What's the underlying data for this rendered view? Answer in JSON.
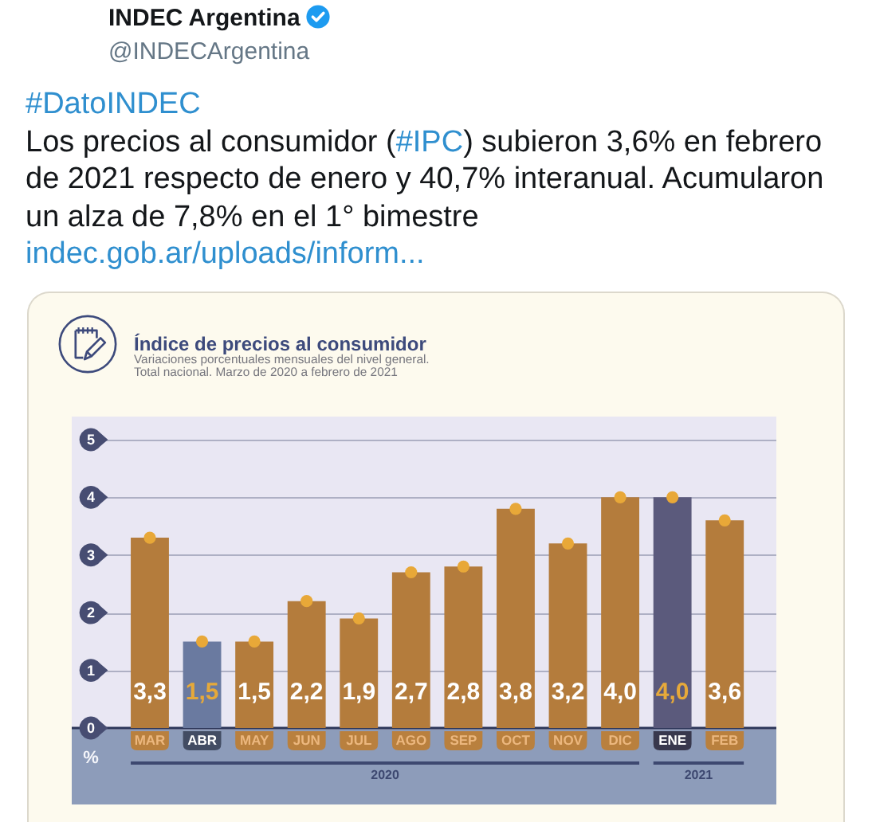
{
  "chart_data": {
    "type": "bar",
    "title": "Índice de precios al consumidor",
    "subtitle": "Variaciones porcentuales mensuales del nivel general. Total nacional. Marzo de 2020 a febrero de 2021",
    "ylabel": "%",
    "categories": [
      "MAR",
      "ABR",
      "MAY",
      "JUN",
      "JUL",
      "AGO",
      "SEP",
      "OCT",
      "NOV",
      "DIC",
      "ENE",
      "FEB"
    ],
    "series": [
      {
        "colors": [
          "#b47c3c",
          "#6a7aa0",
          "#b47c3c",
          "#b47c3c",
          "#b47c3c",
          "#b47c3c",
          "#b47c3c",
          "#b47c3c",
          "#b47c3c",
          "#b47c3c",
          "#5b5a7c",
          "#b47c3c"
        ],
        "values": [
          3.3,
          1.5,
          1.5,
          2.2,
          1.9,
          2.7,
          2.8,
          3.8,
          3.2,
          4.0,
          4.0,
          3.6
        ],
        "value_labels": [
          "3,3",
          "1,5",
          "1,5",
          "2,2",
          "1,9",
          "2,7",
          "2,8",
          "3,8",
          "3,2",
          "4,0",
          "4,0",
          "3,6"
        ]
      },
      {
        "type": "scatter",
        "color": "#e8a838",
        "x": [
          "MAR",
          "ABR",
          "MAY",
          "JUN",
          "JUL",
          "AGO",
          "SEP",
          "OCT",
          "NOV",
          "DIC",
          "ENE",
          "FEB"
        ],
        "values": [
          3.3,
          1.5,
          1.5,
          2.2,
          1.9,
          2.7,
          2.8,
          3.8,
          3.2,
          4.0,
          4.0,
          3.6
        ]
      }
    ],
    "ylim": [
      0,
      5.4
    ],
    "yticks": [
      0,
      1,
      2,
      3,
      4,
      5
    ],
    "grid": "y",
    "marker": "circle",
    "annotations": [
      "INDEC Argentina",
      "@INDECArgentina",
      "#DatoINDEC",
      "Los precios al consumidor (#IPC) subieron 3,6% en febrero de 2021 respecto de enero y 40,7% interanual. Acumularon un alza de 7,8% en el 1° bimestre",
      "indec.gob.ar/uploads/inform...",
      "2020",
      "2021"
    ]
  }
}
